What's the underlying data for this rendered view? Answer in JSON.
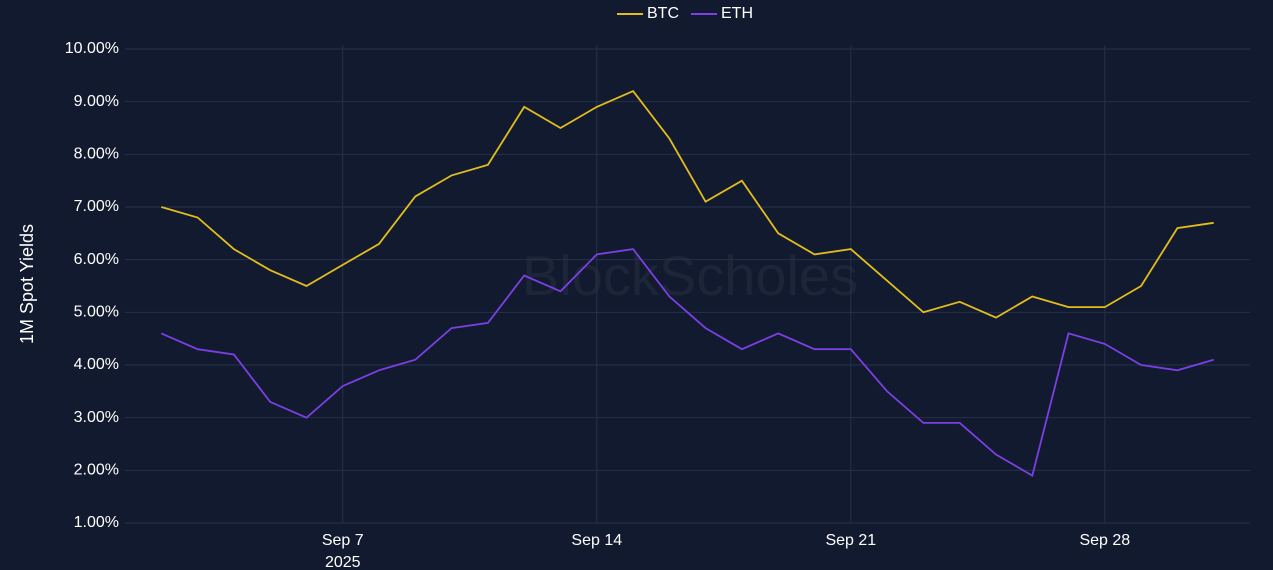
{
  "chart_data": {
    "type": "line",
    "y_axis_title": "1M Spot Yields",
    "watermark": "BlockScholes",
    "x": [
      "2025-09-02",
      "2025-09-03",
      "2025-09-04",
      "2025-09-05",
      "2025-09-06",
      "2025-09-07",
      "2025-09-08",
      "2025-09-09",
      "2025-09-10",
      "2025-09-11",
      "2025-09-12",
      "2025-09-13",
      "2025-09-14",
      "2025-09-15",
      "2025-09-16",
      "2025-09-17",
      "2025-09-18",
      "2025-09-19",
      "2025-09-20",
      "2025-09-21",
      "2025-09-22",
      "2025-09-23",
      "2025-09-24",
      "2025-09-25",
      "2025-09-26",
      "2025-09-27",
      "2025-09-28",
      "2025-09-29",
      "2025-09-30",
      "2025-10-01"
    ],
    "series": [
      {
        "name": "BTC",
        "color": "#e3bd1d",
        "values": [
          7.0,
          6.8,
          6.2,
          5.8,
          5.5,
          5.9,
          6.3,
          7.2,
          7.6,
          7.8,
          8.9,
          8.5,
          8.9,
          9.2,
          8.3,
          7.1,
          7.5,
          6.5,
          6.1,
          6.2,
          5.6,
          5.0,
          5.2,
          4.9,
          5.3,
          5.1,
          5.1,
          5.5,
          6.6,
          6.7
        ]
      },
      {
        "name": "ETH",
        "color": "#7b3fe4",
        "values": [
          4.6,
          4.3,
          4.2,
          3.3,
          3.0,
          3.6,
          3.9,
          4.1,
          4.7,
          4.8,
          5.7,
          5.4,
          6.1,
          6.2,
          5.3,
          4.7,
          4.3,
          4.6,
          4.3,
          4.3,
          3.5,
          2.9,
          2.9,
          2.3,
          1.9,
          4.6,
          4.4,
          4.0,
          3.9,
          4.1
        ]
      }
    ],
    "xlim": [
      "2025-09-01",
      "2025-10-02"
    ],
    "xticks": [
      {
        "value": "2025-09-07",
        "label": "Sep 7",
        "sublabel": "2025"
      },
      {
        "value": "2025-09-14",
        "label": "Sep 14"
      },
      {
        "value": "2025-09-21",
        "label": "Sep 21"
      },
      {
        "value": "2025-09-28",
        "label": "Sep 28"
      }
    ],
    "ylim": [
      1,
      10
    ],
    "yticks": [
      {
        "value": 1,
        "label": "1.00%"
      },
      {
        "value": 2,
        "label": "2.00%"
      },
      {
        "value": 3,
        "label": "3.00%"
      },
      {
        "value": 4,
        "label": "4.00%"
      },
      {
        "value": 5,
        "label": "5.00%"
      },
      {
        "value": 6,
        "label": "6.00%"
      },
      {
        "value": 7,
        "label": "7.00%"
      },
      {
        "value": 8,
        "label": "8.00%"
      },
      {
        "value": 9,
        "label": "9.00%"
      },
      {
        "value": 10,
        "label": "10.00%"
      }
    ],
    "grid": true,
    "legend": "top"
  }
}
